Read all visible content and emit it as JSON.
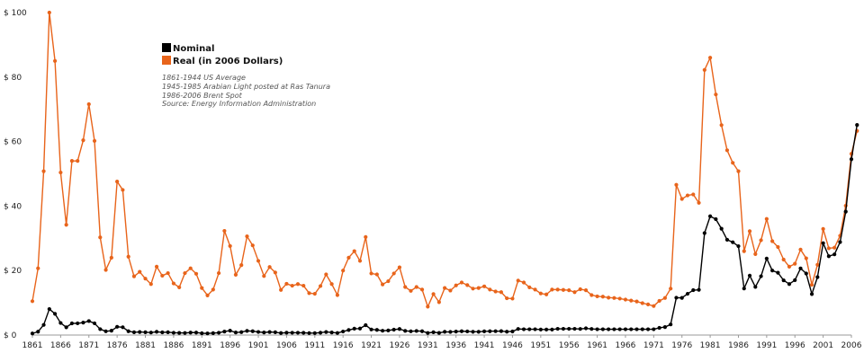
{
  "chart_data": {
    "type": "line",
    "title": "",
    "xlabel": "",
    "ylabel": "",
    "xlim": [
      1861,
      2006
    ],
    "ylim": [
      0,
      100
    ],
    "grid": false,
    "y_ticks": [
      0,
      20,
      40,
      60,
      80,
      100
    ],
    "y_tick_labels": [
      "$ 0",
      "$ 20",
      "$ 40",
      "$ 60",
      "$ 80",
      "$ 100"
    ],
    "x_ticks": [
      1861,
      1866,
      1871,
      1876,
      1881,
      1886,
      1891,
      1896,
      1901,
      1906,
      1911,
      1916,
      1921,
      1926,
      1931,
      1936,
      1941,
      1946,
      1951,
      1956,
      1961,
      1966,
      1971,
      1976,
      1981,
      1986,
      1991,
      1996,
      2001,
      2006
    ],
    "x_tick_labels": [
      "1861",
      "1866",
      "1871",
      "1876",
      "1881",
      "1886",
      "1891",
      "1896",
      "1901",
      "1906",
      "1911",
      "1916",
      "1921",
      "1926",
      "1931",
      "1936",
      "1941",
      "1946",
      "1951",
      "1956",
      "1961",
      "1966",
      "1971",
      "1976",
      "1981",
      "1986",
      "1991",
      "1996",
      "2001",
      "2006"
    ],
    "legend_position": "top-left",
    "legend": [
      {
        "label": "Nominal",
        "color": "#000000"
      },
      {
        "label": "Real (in 2006 Dollars)",
        "color": "#e8641b"
      }
    ],
    "annotations": [
      "1861-1944 US Average",
      "1945-1985 Arabian Light posted at Ras Tanura",
      "1986-2006 Brent Spot",
      "Source: Energy Information Administration"
    ],
    "x_start": 1861,
    "series": [
      {
        "name": "Nominal",
        "color": "#000000",
        "values": [
          0.49,
          1.05,
          3.15,
          8.06,
          6.59,
          3.74,
          2.41,
          3.62,
          3.64,
          3.86,
          4.34,
          3.64,
          1.83,
          1.17,
          1.35,
          2.56,
          2.42,
          1.19,
          0.86,
          0.95,
          0.86,
          0.78,
          1.0,
          0.84,
          0.88,
          0.71,
          0.67,
          0.65,
          0.77,
          0.77,
          0.56,
          0.51,
          0.6,
          0.72,
          1.09,
          1.36,
          0.79,
          0.91,
          1.29,
          1.19,
          0.96,
          0.8,
          0.94,
          0.86,
          0.62,
          0.73,
          0.72,
          0.72,
          0.7,
          0.61,
          0.61,
          0.74,
          0.95,
          0.81,
          0.64,
          1.1,
          1.56,
          1.98,
          2.01,
          3.07,
          1.73,
          1.61,
          1.34,
          1.43,
          1.68,
          1.88,
          1.3,
          1.17,
          1.27,
          1.19,
          0.65,
          0.87,
          0.67,
          1.0,
          0.97,
          1.09,
          1.18,
          1.13,
          1.02,
          1.02,
          1.14,
          1.19,
          1.2,
          1.21,
          1.05,
          1.12,
          1.9,
          1.8,
          1.8,
          1.8,
          1.71,
          1.71,
          1.71,
          1.93,
          1.93,
          1.93,
          1.93,
          1.9,
          2.08,
          1.9,
          1.8,
          1.8,
          1.8,
          1.8,
          1.8,
          1.8,
          1.8,
          1.8,
          1.8,
          1.8,
          1.8,
          2.24,
          2.48,
          3.29,
          11.58,
          11.53,
          12.8,
          13.92,
          14.02,
          31.61,
          36.83,
          35.93,
          32.97,
          29.55,
          28.78,
          27.56,
          14.43,
          18.44,
          14.92,
          18.23,
          23.73,
          20.0,
          19.32,
          16.97,
          15.82,
          17.02,
          20.67,
          19.09,
          12.72,
          17.97,
          28.5,
          24.44,
          25.02,
          28.83,
          38.27,
          54.52,
          65.14
        ]
      },
      {
        "name": "Real (in 2006 Dollars)",
        "color": "#e8641b",
        "values": [
          10.5,
          20.7,
          50.8,
          100.0,
          85.0,
          50.4,
          34.2,
          54.0,
          54.0,
          60.4,
          71.6,
          60.2,
          30.3,
          20.2,
          24.0,
          47.6,
          45.0,
          24.3,
          18.2,
          19.6,
          17.5,
          15.8,
          21.2,
          18.4,
          19.2,
          16.0,
          14.8,
          19.2,
          20.7,
          19.0,
          14.6,
          12.3,
          14.1,
          19.2,
          32.3,
          27.6,
          18.7,
          21.7,
          30.6,
          27.8,
          23.0,
          18.3,
          21.1,
          19.4,
          14.0,
          15.9,
          15.3,
          15.8,
          15.3,
          13.0,
          12.8,
          15.2,
          18.8,
          15.8,
          12.4,
          20.0,
          24.0,
          26.0,
          23.0,
          30.4,
          19.1,
          18.8,
          15.7,
          16.7,
          19.1,
          21.0,
          14.9,
          13.7,
          14.9,
          14.1,
          8.8,
          12.7,
          10.2,
          14.6,
          13.8,
          15.4,
          16.3,
          15.5,
          14.4,
          14.6,
          15.1,
          14.1,
          13.5,
          13.3,
          11.4,
          11.3,
          16.9,
          16.3,
          14.8,
          14.1,
          12.9,
          12.6,
          14.1,
          14.1,
          14.0,
          13.9,
          13.3,
          14.2,
          13.9,
          12.4,
          12.0,
          11.9,
          11.6,
          11.5,
          11.3,
          11.0,
          10.7,
          10.4,
          9.9,
          9.5,
          9.0,
          10.6,
          11.5,
          14.4,
          46.6,
          42.2,
          43.3,
          43.6,
          41.0,
          82.2,
          86.0,
          74.6,
          65.1,
          57.3,
          53.4,
          50.8,
          26.0,
          32.2,
          25.1,
          29.4,
          36.0,
          29.1,
          27.3,
          23.4,
          21.2,
          22.1,
          26.5,
          23.8,
          15.6,
          21.8,
          32.9,
          26.9,
          27.1,
          30.8,
          40.1,
          56.2,
          63.3
        ]
      }
    ]
  }
}
